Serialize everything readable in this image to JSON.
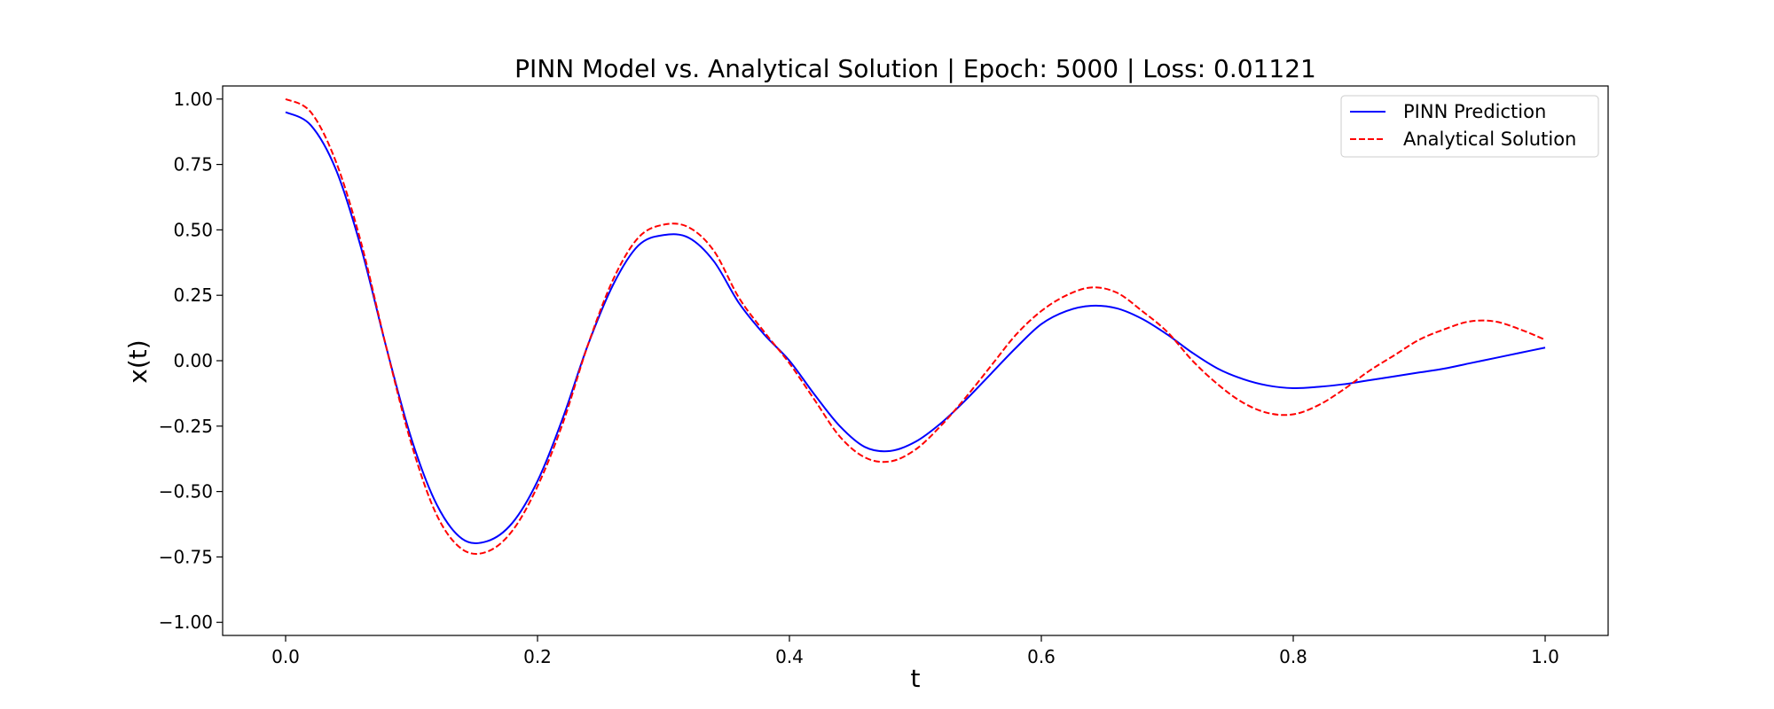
{
  "chart_data": {
    "type": "line",
    "title": "PINN Model vs. Analytical Solution | Epoch: 5000 | Loss: 0.01121",
    "xlabel": "t",
    "ylabel": "x(t)",
    "xlim": [
      -0.05,
      1.05
    ],
    "ylim": [
      -1.05,
      1.05
    ],
    "xticks": [
      0.0,
      0.2,
      0.4,
      0.6,
      0.8,
      1.0
    ],
    "xtick_labels": [
      "0.0",
      "0.2",
      "0.4",
      "0.6",
      "0.8",
      "1.0"
    ],
    "yticks": [
      1.0,
      0.75,
      0.5,
      0.25,
      0.0,
      -0.25,
      -0.5,
      -0.75,
      -1.0
    ],
    "ytick_labels": [
      "1.00",
      "0.75",
      "0.50",
      "0.25",
      "0.00",
      "−0.25",
      "−0.50",
      "−0.75",
      "−1.00"
    ],
    "grid": false,
    "legend_position": "top-right",
    "x": [
      0.0,
      0.02,
      0.04,
      0.06,
      0.08,
      0.1,
      0.12,
      0.14,
      0.16,
      0.18,
      0.2,
      0.22,
      0.24,
      0.26,
      0.28,
      0.3,
      0.32,
      0.34,
      0.36,
      0.38,
      0.4,
      0.42,
      0.44,
      0.46,
      0.48,
      0.5,
      0.52,
      0.54,
      0.56,
      0.58,
      0.6,
      0.62,
      0.64,
      0.66,
      0.68,
      0.7,
      0.72,
      0.74,
      0.76,
      0.78,
      0.8,
      0.82,
      0.84,
      0.86,
      0.88,
      0.9,
      0.92,
      0.94,
      0.96,
      0.98,
      1.0
    ],
    "series": [
      {
        "name": "PINN Prediction",
        "color": "#0000ff",
        "style": "solid",
        "values": [
          0.95,
          0.9,
          0.73,
          0.43,
          0.05,
          -0.3,
          -0.55,
          -0.68,
          -0.69,
          -0.62,
          -0.46,
          -0.22,
          0.06,
          0.29,
          0.44,
          0.48,
          0.47,
          0.38,
          0.22,
          0.1,
          0.0,
          -0.13,
          -0.25,
          -0.33,
          -0.345,
          -0.31,
          -0.24,
          -0.15,
          -0.05,
          0.05,
          0.14,
          0.19,
          0.21,
          0.2,
          0.16,
          0.1,
          0.03,
          -0.03,
          -0.07,
          -0.095,
          -0.105,
          -0.1,
          -0.09,
          -0.075,
          -0.06,
          -0.045,
          -0.03,
          -0.01,
          0.01,
          0.03,
          0.05
        ]
      },
      {
        "name": "Analytical Solution",
        "color": "#ff0000",
        "style": "dashed",
        "values": [
          1.0,
          0.95,
          0.76,
          0.45,
          0.05,
          -0.32,
          -0.59,
          -0.72,
          -0.73,
          -0.65,
          -0.48,
          -0.24,
          0.06,
          0.31,
          0.47,
          0.52,
          0.51,
          0.42,
          0.24,
          0.11,
          -0.01,
          -0.15,
          -0.29,
          -0.37,
          -0.385,
          -0.34,
          -0.25,
          -0.14,
          -0.02,
          0.1,
          0.19,
          0.25,
          0.28,
          0.26,
          0.19,
          0.11,
          0.0,
          -0.09,
          -0.16,
          -0.2,
          -0.205,
          -0.17,
          -0.11,
          -0.04,
          0.02,
          0.08,
          0.12,
          0.15,
          0.15,
          0.12,
          0.08
        ]
      }
    ]
  }
}
